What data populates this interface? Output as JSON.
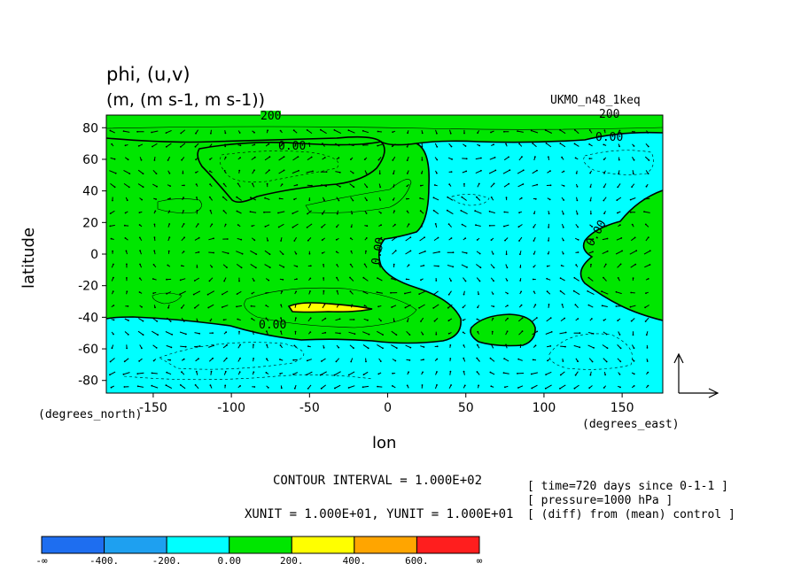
{
  "chart_data": {
    "type": "heatmap",
    "title": "phi, (u,v)",
    "subtitle": "(m, (m s-1, m s-1))",
    "model_label": "UKMO_n48_1keq",
    "xlabel": "lon",
    "ylabel": "latitude",
    "x_units_label": "(degrees_east)",
    "y_units_label": "(degrees_north)",
    "xlim": [
      -180,
      176
    ],
    "ylim": [
      -88,
      88
    ],
    "x_ticks": [
      -150,
      -100,
      -50,
      0,
      50,
      100,
      150
    ],
    "y_ticks": [
      80,
      60,
      40,
      20,
      0,
      -20,
      -40,
      -60,
      -80
    ],
    "contour_interval_text": "CONTOUR INTERVAL = 1.000E+02",
    "vector_unit_text": "XUNIT = 1.000E+01, YUNIT = 1.000E+01",
    "meta_lines": [
      "[ time=720 days since 0-1-1 ]",
      "[ pressure=1000 hPa ]",
      "[ (diff) from (mean) control ]"
    ],
    "contour_labels": [
      "200",
      "0.00",
      "200",
      "0.00",
      "0.00",
      "0.00",
      "0.00"
    ],
    "colorbar": {
      "bounds": [
        "-∞",
        "-400.",
        "-200.",
        "0.00",
        "200.",
        "400.",
        "600.",
        "∞"
      ],
      "colors": [
        "#1e6ef0",
        "#1ea0f0",
        "#00ffff",
        "#00e600",
        "#ffff00",
        "#ffa500",
        "#ff1e1e"
      ]
    },
    "regions": {
      "negative_color": "#00ffff",
      "positive_color": "#00e600",
      "max_color": "#ffff00"
    }
  }
}
